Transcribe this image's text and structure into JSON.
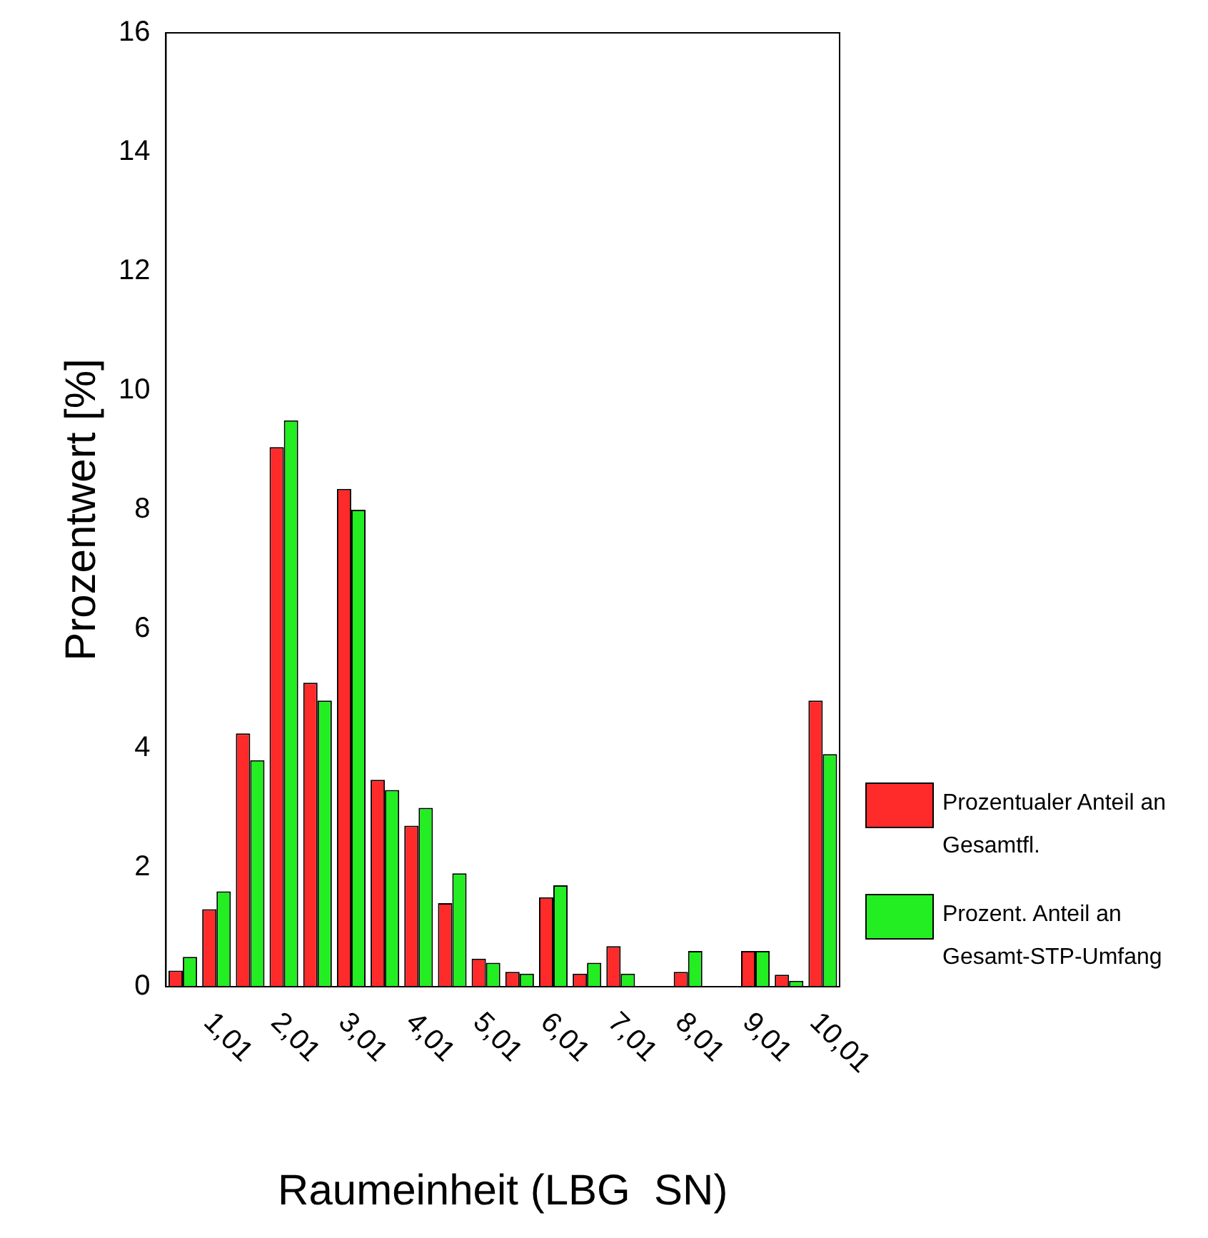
{
  "chart_data": {
    "type": "bar",
    "xlabel": "Raumeinheit (LBG  SN)",
    "ylabel": "Prozentwert [%]",
    "categories": [
      null,
      "1,01",
      null,
      "2,01",
      null,
      "3,01",
      null,
      "4,01",
      null,
      "5,01",
      null,
      "6,01",
      null,
      "7,01",
      null,
      "8,01",
      null,
      "9,01",
      null,
      "10,01"
    ],
    "series": [
      {
        "name": "Prozentualer Anteil an Gesamtfl.",
        "color": "#ff2a2a",
        "values": [
          0.27,
          1.3,
          4.25,
          9.05,
          5.1,
          8.35,
          3.47,
          2.7,
          1.4,
          0.47,
          0.25,
          1.5,
          0.22,
          0.68,
          0,
          0.25,
          0,
          0.6,
          0.2,
          4.8
        ]
      },
      {
        "name": "Prozent. Anteil an Gesamt-STP-Umfang",
        "color": "#22ee22",
        "values": [
          0.5,
          1.6,
          3.8,
          9.5,
          4.8,
          8.0,
          3.3,
          3.0,
          1.9,
          0.4,
          0.22,
          1.7,
          0.4,
          0.22,
          0,
          0.6,
          0,
          0.6,
          0.1,
          3.9
        ]
      }
    ],
    "ylim": [
      0,
      16
    ],
    "yticks": [
      0,
      2,
      4,
      6,
      8,
      10,
      12,
      14,
      16
    ],
    "grid": false,
    "legend": "right"
  }
}
